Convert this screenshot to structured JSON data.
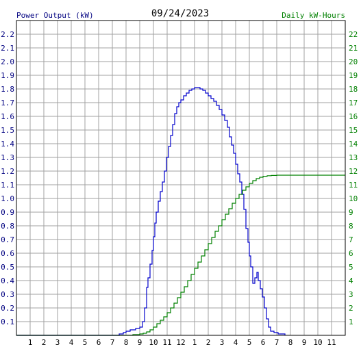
{
  "header": {
    "left_label": "Power Output (kW)",
    "title": "09/24/2023",
    "right_label": "Daily kW-Hours"
  },
  "colors": {
    "left_axis": "#000080",
    "right_axis": "#008000",
    "title": "#000000",
    "grid": "#a0a0a0",
    "power_line": "#0000cc",
    "energy_line": "#008000"
  },
  "chart_data": {
    "type": "line",
    "title": "09/24/2023",
    "left_axis": {
      "label": "Power Output (kW)",
      "range": [
        0,
        2.3
      ],
      "ticks": [
        "0.1",
        "0.2",
        "0.3",
        "0.4",
        "0.5",
        "0.6",
        "0.7",
        "0.8",
        "0.9",
        "1.0",
        "1.1",
        "1.2",
        "1.3",
        "1.4",
        "1.5",
        "1.6",
        "1.7",
        "1.8",
        "1.9",
        "2.0",
        "2.1",
        "2.2"
      ]
    },
    "right_axis": {
      "label": "Daily kW-Hours",
      "range": [
        0,
        23
      ],
      "ticks": [
        "1",
        "2",
        "3",
        "4",
        "5",
        "6",
        "7",
        "8",
        "9",
        "10",
        "11",
        "12",
        "13",
        "14",
        "15",
        "16",
        "17",
        "18",
        "19",
        "20",
        "21",
        "22"
      ]
    },
    "x_axis": {
      "range": [
        0,
        24
      ],
      "tick_positions": [
        1,
        2,
        3,
        4,
        5,
        6,
        7,
        8,
        9,
        10,
        11,
        12,
        13,
        14,
        15,
        16,
        17,
        18,
        19,
        20,
        21,
        22,
        23
      ],
      "tick_labels": [
        "1",
        "2",
        "3",
        "4",
        "5",
        "6",
        "7",
        "8",
        "9",
        "10",
        "11",
        "12",
        "1",
        "2",
        "3",
        "4",
        "5",
        "6",
        "7",
        "8",
        "9",
        "10",
        "11"
      ]
    },
    "grid": true,
    "series": [
      {
        "key": "power",
        "axis": "left",
        "step": true,
        "points": [
          [
            0,
            0
          ],
          [
            7.0,
            0
          ],
          [
            7.5,
            0.01
          ],
          [
            7.8,
            0.02
          ],
          [
            8.0,
            0.03
          ],
          [
            8.3,
            0.04
          ],
          [
            8.7,
            0.05
          ],
          [
            9.0,
            0.06
          ],
          [
            9.2,
            0.1
          ],
          [
            9.35,
            0.2
          ],
          [
            9.5,
            0.35
          ],
          [
            9.6,
            0.42
          ],
          [
            9.75,
            0.52
          ],
          [
            9.9,
            0.62
          ],
          [
            10.0,
            0.72
          ],
          [
            10.1,
            0.82
          ],
          [
            10.2,
            0.9
          ],
          [
            10.35,
            0.98
          ],
          [
            10.5,
            1.05
          ],
          [
            10.65,
            1.12
          ],
          [
            10.8,
            1.2
          ],
          [
            10.95,
            1.3
          ],
          [
            11.1,
            1.38
          ],
          [
            11.25,
            1.46
          ],
          [
            11.4,
            1.54
          ],
          [
            11.55,
            1.62
          ],
          [
            11.7,
            1.67
          ],
          [
            11.85,
            1.7
          ],
          [
            12.0,
            1.72
          ],
          [
            12.2,
            1.75
          ],
          [
            12.4,
            1.77
          ],
          [
            12.6,
            1.79
          ],
          [
            12.8,
            1.8
          ],
          [
            13.0,
            1.81
          ],
          [
            13.2,
            1.81
          ],
          [
            13.4,
            1.8
          ],
          [
            13.6,
            1.79
          ],
          [
            13.8,
            1.77
          ],
          [
            14.0,
            1.75
          ],
          [
            14.2,
            1.73
          ],
          [
            14.4,
            1.71
          ],
          [
            14.6,
            1.68
          ],
          [
            14.8,
            1.65
          ],
          [
            15.0,
            1.61
          ],
          [
            15.2,
            1.57
          ],
          [
            15.4,
            1.52
          ],
          [
            15.55,
            1.45
          ],
          [
            15.7,
            1.39
          ],
          [
            15.85,
            1.33
          ],
          [
            16.0,
            1.25
          ],
          [
            16.15,
            1.18
          ],
          [
            16.3,
            1.12
          ],
          [
            16.45,
            1.03
          ],
          [
            16.6,
            0.92
          ],
          [
            16.75,
            0.78
          ],
          [
            16.9,
            0.68
          ],
          [
            17.0,
            0.58
          ],
          [
            17.1,
            0.5
          ],
          [
            17.25,
            0.38
          ],
          [
            17.4,
            0.42
          ],
          [
            17.55,
            0.46
          ],
          [
            17.65,
            0.4
          ],
          [
            17.8,
            0.34
          ],
          [
            17.95,
            0.28
          ],
          [
            18.1,
            0.2
          ],
          [
            18.25,
            0.12
          ],
          [
            18.4,
            0.06
          ],
          [
            18.55,
            0.03
          ],
          [
            18.8,
            0.02
          ],
          [
            19.1,
            0.01
          ],
          [
            19.5,
            0.01
          ],
          [
            19.6,
            0
          ]
        ]
      },
      {
        "key": "energy",
        "axis": "right",
        "step": true,
        "points": [
          [
            0,
            0
          ],
          [
            8.0,
            0
          ],
          [
            8.5,
            0.05
          ],
          [
            9.0,
            0.1
          ],
          [
            9.25,
            0.15
          ],
          [
            9.5,
            0.25
          ],
          [
            9.75,
            0.4
          ],
          [
            10.0,
            0.6
          ],
          [
            10.25,
            0.85
          ],
          [
            10.5,
            1.1
          ],
          [
            10.75,
            1.35
          ],
          [
            11.0,
            1.65
          ],
          [
            11.25,
            2.0
          ],
          [
            11.5,
            2.35
          ],
          [
            11.75,
            2.75
          ],
          [
            12.0,
            3.15
          ],
          [
            12.25,
            3.55
          ],
          [
            12.5,
            4.0
          ],
          [
            12.75,
            4.45
          ],
          [
            13.0,
            4.9
          ],
          [
            13.25,
            5.35
          ],
          [
            13.5,
            5.8
          ],
          [
            13.75,
            6.25
          ],
          [
            14.0,
            6.7
          ],
          [
            14.25,
            7.15
          ],
          [
            14.5,
            7.6
          ],
          [
            14.75,
            8.0
          ],
          [
            15.0,
            8.45
          ],
          [
            15.25,
            8.85
          ],
          [
            15.5,
            9.25
          ],
          [
            15.75,
            9.65
          ],
          [
            16.0,
            10.0
          ],
          [
            16.25,
            10.3
          ],
          [
            16.5,
            10.6
          ],
          [
            16.75,
            10.85
          ],
          [
            17.0,
            11.1
          ],
          [
            17.25,
            11.3
          ],
          [
            17.5,
            11.45
          ],
          [
            17.75,
            11.55
          ],
          [
            18.0,
            11.62
          ],
          [
            18.3,
            11.66
          ],
          [
            18.6,
            11.68
          ],
          [
            19.0,
            11.7
          ],
          [
            24.0,
            11.7
          ]
        ]
      }
    ]
  }
}
